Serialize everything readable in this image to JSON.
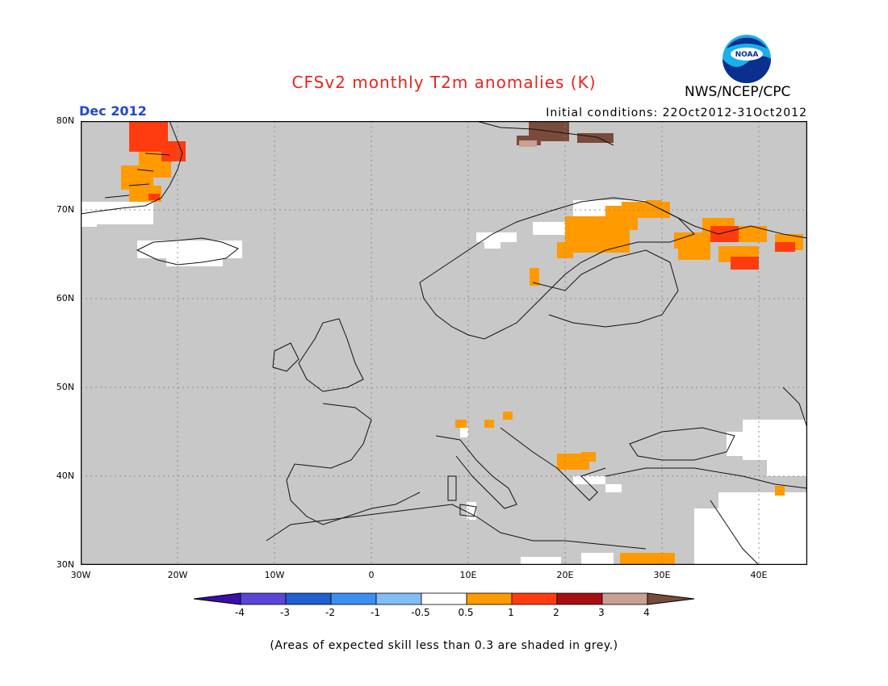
{
  "title": "CFSv2 monthly T2m anomalies (K)",
  "org": "NWS/NCEP/CPC",
  "logo_text": "NOAA",
  "month": "Dec 2012",
  "initial_conditions": "Initial conditions: 22Oct2012-31Oct2012",
  "lat_labels": [
    "80N",
    "70N",
    "60N",
    "50N",
    "40N",
    "30N"
  ],
  "lon_labels": [
    "30W",
    "20W",
    "10W",
    "0",
    "10E",
    "20E",
    "30E",
    "40E"
  ],
  "colorbar": {
    "ticks": [
      "-4",
      "-3",
      "-2",
      "-1",
      "-0.5",
      "0.5",
      "1",
      "2",
      "3",
      "4"
    ],
    "colors": [
      "#3a0fa8",
      "#5a45d6",
      "#1f5fd0",
      "#3c8ff0",
      "#84bdf5",
      "#ffffff",
      "#ff9a00",
      "#ff3c0f",
      "#a60f12",
      "#c9a093",
      "#7a4b3b"
    ]
  },
  "note": "(Areas of expected skill less than 0.3 are shaded in grey.)",
  "colors": {
    "grey_low_skill": "#c8c8c8",
    "title_red": "#e8241e",
    "month_blue": "#2247d8"
  }
}
